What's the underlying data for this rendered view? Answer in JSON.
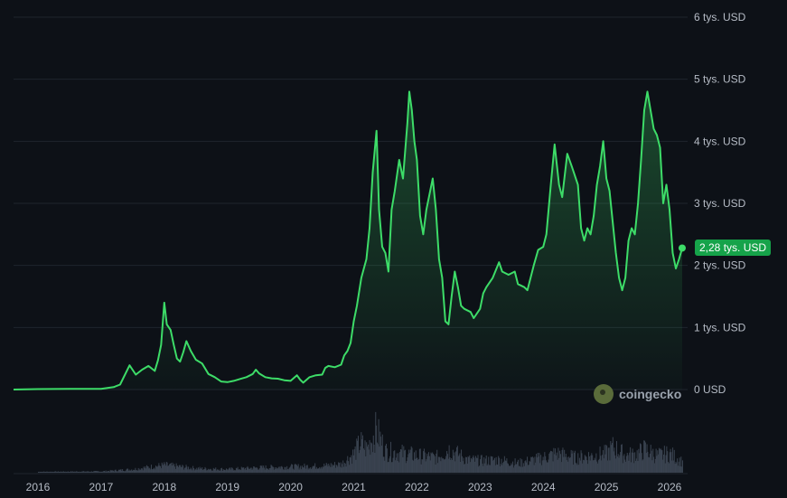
{
  "chart_data": {
    "type": "area",
    "title": "",
    "xlabel": "",
    "ylabel": "",
    "ylim": [
      0,
      6000
    ],
    "y_ticks": [
      {
        "value": 0,
        "label": "0 USD"
      },
      {
        "value": 1000,
        "label": "1 tys. USD"
      },
      {
        "value": 2000,
        "label": "2 tys. USD"
      },
      {
        "value": 3000,
        "label": "3 tys. USD"
      },
      {
        "value": 4000,
        "label": "4 tys. USD"
      },
      {
        "value": 5000,
        "label": "5 tys. USD"
      },
      {
        "value": 6000,
        "label": "6 tys. USD"
      }
    ],
    "x_ticks": [
      "2016",
      "2017",
      "2018",
      "2019",
      "2020",
      "2021",
      "2022",
      "2023",
      "2024",
      "2025",
      "2026"
    ],
    "grid": true,
    "current_price_label": "2,28 tys. USD",
    "watermark": "coingecko",
    "line_color": "#3ddc68",
    "series": [
      {
        "values": [
          [
            2015.6,
            0
          ],
          [
            2016.0,
            8
          ],
          [
            2016.5,
            12
          ],
          [
            2017.0,
            10
          ],
          [
            2017.2,
            40
          ],
          [
            2017.3,
            80
          ],
          [
            2017.45,
            390
          ],
          [
            2017.55,
            240
          ],
          [
            2017.65,
            320
          ],
          [
            2017.75,
            380
          ],
          [
            2017.85,
            300
          ],
          [
            2017.9,
            470
          ],
          [
            2017.95,
            720
          ],
          [
            2018.0,
            1400
          ],
          [
            2018.04,
            1050
          ],
          [
            2018.1,
            960
          ],
          [
            2018.15,
            720
          ],
          [
            2018.2,
            500
          ],
          [
            2018.25,
            450
          ],
          [
            2018.3,
            600
          ],
          [
            2018.35,
            780
          ],
          [
            2018.42,
            620
          ],
          [
            2018.5,
            480
          ],
          [
            2018.6,
            420
          ],
          [
            2018.7,
            250
          ],
          [
            2018.8,
            200
          ],
          [
            2018.9,
            130
          ],
          [
            2019.0,
            120
          ],
          [
            2019.1,
            140
          ],
          [
            2019.2,
            170
          ],
          [
            2019.3,
            200
          ],
          [
            2019.4,
            250
          ],
          [
            2019.45,
            320
          ],
          [
            2019.5,
            260
          ],
          [
            2019.6,
            200
          ],
          [
            2019.7,
            180
          ],
          [
            2019.8,
            175
          ],
          [
            2019.9,
            150
          ],
          [
            2020.0,
            140
          ],
          [
            2020.1,
            230
          ],
          [
            2020.15,
            160
          ],
          [
            2020.2,
            110
          ],
          [
            2020.3,
            200
          ],
          [
            2020.4,
            230
          ],
          [
            2020.5,
            240
          ],
          [
            2020.55,
            350
          ],
          [
            2020.6,
            380
          ],
          [
            2020.7,
            360
          ],
          [
            2020.8,
            400
          ],
          [
            2020.85,
            550
          ],
          [
            2020.9,
            620
          ],
          [
            2020.95,
            750
          ],
          [
            2021.0,
            1100
          ],
          [
            2021.05,
            1350
          ],
          [
            2021.12,
            1800
          ],
          [
            2021.2,
            2100
          ],
          [
            2021.25,
            2600
          ],
          [
            2021.3,
            3500
          ],
          [
            2021.36,
            4170
          ],
          [
            2021.4,
            2900
          ],
          [
            2021.45,
            2300
          ],
          [
            2021.5,
            2200
          ],
          [
            2021.55,
            1900
          ],
          [
            2021.6,
            2900
          ],
          [
            2021.65,
            3200
          ],
          [
            2021.72,
            3700
          ],
          [
            2021.78,
            3400
          ],
          [
            2021.85,
            4300
          ],
          [
            2021.88,
            4800
          ],
          [
            2021.92,
            4500
          ],
          [
            2021.96,
            4000
          ],
          [
            2022.0,
            3700
          ],
          [
            2022.05,
            2800
          ],
          [
            2022.1,
            2500
          ],
          [
            2022.15,
            2900
          ],
          [
            2022.25,
            3400
          ],
          [
            2022.3,
            2900
          ],
          [
            2022.35,
            2100
          ],
          [
            2022.4,
            1800
          ],
          [
            2022.45,
            1100
          ],
          [
            2022.5,
            1050
          ],
          [
            2022.55,
            1500
          ],
          [
            2022.6,
            1900
          ],
          [
            2022.65,
            1650
          ],
          [
            2022.7,
            1350
          ],
          [
            2022.75,
            1300
          ],
          [
            2022.85,
            1250
          ],
          [
            2022.9,
            1150
          ],
          [
            2023.0,
            1300
          ],
          [
            2023.05,
            1550
          ],
          [
            2023.1,
            1650
          ],
          [
            2023.2,
            1800
          ],
          [
            2023.3,
            2050
          ],
          [
            2023.35,
            1900
          ],
          [
            2023.45,
            1850
          ],
          [
            2023.55,
            1900
          ],
          [
            2023.6,
            1700
          ],
          [
            2023.7,
            1650
          ],
          [
            2023.75,
            1600
          ],
          [
            2023.85,
            2000
          ],
          [
            2023.92,
            2250
          ],
          [
            2024.0,
            2300
          ],
          [
            2024.05,
            2500
          ],
          [
            2024.12,
            3300
          ],
          [
            2024.18,
            3950
          ],
          [
            2024.25,
            3300
          ],
          [
            2024.3,
            3100
          ],
          [
            2024.38,
            3800
          ],
          [
            2024.45,
            3600
          ],
          [
            2024.55,
            3300
          ],
          [
            2024.6,
            2600
          ],
          [
            2024.65,
            2400
          ],
          [
            2024.7,
            2600
          ],
          [
            2024.75,
            2500
          ],
          [
            2024.8,
            2800
          ],
          [
            2024.85,
            3300
          ],
          [
            2024.9,
            3600
          ],
          [
            2024.95,
            4000
          ],
          [
            2025.0,
            3400
          ],
          [
            2025.05,
            3200
          ],
          [
            2025.1,
            2700
          ],
          [
            2025.15,
            2200
          ],
          [
            2025.2,
            1800
          ],
          [
            2025.25,
            1600
          ],
          [
            2025.3,
            1800
          ],
          [
            2025.35,
            2400
          ],
          [
            2025.4,
            2600
          ],
          [
            2025.45,
            2500
          ],
          [
            2025.5,
            3000
          ],
          [
            2025.55,
            3700
          ],
          [
            2025.6,
            4500
          ],
          [
            2025.65,
            4800
          ],
          [
            2025.7,
            4500
          ],
          [
            2025.75,
            4200
          ],
          [
            2025.8,
            4100
          ],
          [
            2025.85,
            3900
          ],
          [
            2025.9,
            3000
          ],
          [
            2025.95,
            3300
          ],
          [
            2026.0,
            2900
          ],
          [
            2026.05,
            2200
          ],
          [
            2026.1,
            1950
          ],
          [
            2026.15,
            2100
          ],
          [
            2026.2,
            2280
          ]
        ]
      }
    ],
    "volume": [
      [
        2016.0,
        2
      ],
      [
        2017.0,
        3
      ],
      [
        2017.5,
        8
      ],
      [
        2018.0,
        18
      ],
      [
        2018.5,
        10
      ],
      [
        2019.0,
        8
      ],
      [
        2019.5,
        12
      ],
      [
        2020.0,
        14
      ],
      [
        2020.5,
        16
      ],
      [
        2020.8,
        20
      ],
      [
        2021.0,
        45
      ],
      [
        2021.1,
        70
      ],
      [
        2021.2,
        55
      ],
      [
        2021.35,
        100
      ],
      [
        2021.5,
        50
      ],
      [
        2021.8,
        45
      ],
      [
        2022.0,
        40
      ],
      [
        2022.3,
        35
      ],
      [
        2022.5,
        55
      ],
      [
        2022.8,
        30
      ],
      [
        2023.0,
        28
      ],
      [
        2023.3,
        30
      ],
      [
        2023.6,
        22
      ],
      [
        2024.0,
        35
      ],
      [
        2024.2,
        45
      ],
      [
        2024.5,
        35
      ],
      [
        2024.8,
        40
      ],
      [
        2025.0,
        45
      ],
      [
        2025.1,
        60
      ],
      [
        2025.3,
        40
      ],
      [
        2025.5,
        45
      ],
      [
        2025.6,
        55
      ],
      [
        2025.8,
        40
      ],
      [
        2026.0,
        45
      ],
      [
        2026.1,
        35
      ],
      [
        2026.2,
        25
      ]
    ]
  }
}
